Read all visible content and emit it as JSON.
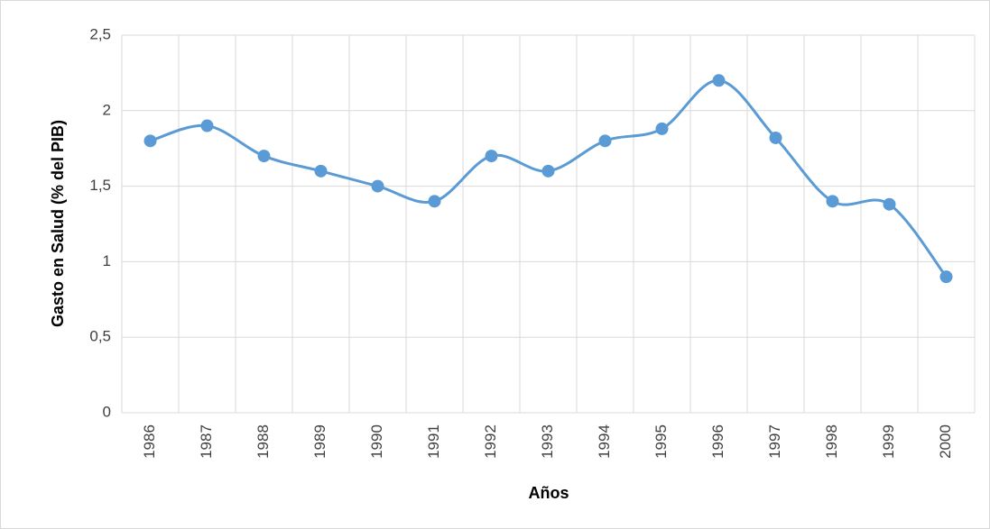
{
  "chart_data": {
    "type": "line",
    "x_label": "Años",
    "y_label": "Gasto en Salud (% del PIB)",
    "categories": [
      "1986",
      "1987",
      "1988",
      "1989",
      "1990",
      "1991",
      "1992",
      "1993",
      "1994",
      "1995",
      "1996",
      "1997",
      "1998",
      "1999",
      "2000"
    ],
    "series": [
      {
        "color": "#5b9bd5",
        "values": [
          1.8,
          1.9,
          1.7,
          1.6,
          1.5,
          1.4,
          1.7,
          1.6,
          1.8,
          1.88,
          2.2,
          1.82,
          1.4,
          1.38,
          0.9
        ]
      }
    ],
    "ylim": [
      0,
      2.5
    ],
    "yticks": [
      0,
      {
        "value": 0.5,
        "label": "0,5"
      },
      1,
      {
        "value": 1.5,
        "label": "1,5"
      },
      2,
      {
        "value": 2.5,
        "label": "2,5"
      }
    ],
    "grid": true,
    "smooth": true
  }
}
